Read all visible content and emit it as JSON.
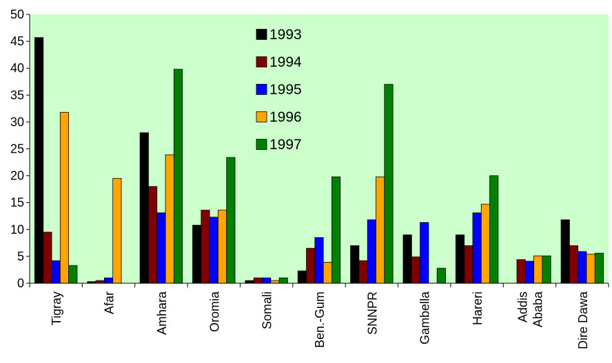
{
  "chart_data": {
    "type": "bar",
    "title": "",
    "xlabel": "",
    "ylabel": "",
    "ylim": [
      0,
      50
    ],
    "yticks": [
      0,
      5,
      10,
      15,
      20,
      25,
      30,
      35,
      40,
      45,
      50
    ],
    "grid": false,
    "plot_background": "#ccffcc",
    "legend_position": "inside-top-center",
    "categories": [
      [
        "Tigray"
      ],
      [
        "Afar"
      ],
      [
        "Amhara"
      ],
      [
        "Oromia"
      ],
      [
        "Somali"
      ],
      [
        "Ben.-Gum"
      ],
      [
        "SNNPR"
      ],
      [
        "Gambella"
      ],
      [
        "Hareri"
      ],
      [
        "Addis",
        "Ababa"
      ],
      [
        "Dire Dawa"
      ]
    ],
    "series": [
      {
        "name": "1993",
        "color": "#000000",
        "values": [
          45.7,
          0.3,
          28.0,
          10.8,
          0.5,
          2.3,
          7.0,
          9.0,
          9.0,
          0,
          11.8
        ]
      },
      {
        "name": "1994",
        "color": "#800000",
        "values": [
          9.5,
          0.5,
          18.0,
          13.6,
          1.0,
          6.5,
          4.2,
          4.9,
          7.0,
          4.4,
          7.0
        ]
      },
      {
        "name": "1995",
        "color": "#0000ff",
        "values": [
          4.2,
          1.0,
          13.1,
          12.3,
          1.0,
          8.5,
          11.8,
          11.3,
          13.1,
          4.1,
          5.9
        ]
      },
      {
        "name": "1996",
        "color": "#ffa500",
        "values": [
          31.8,
          19.5,
          23.9,
          13.6,
          0.5,
          3.9,
          19.8,
          0,
          14.7,
          5.1,
          5.4
        ]
      },
      {
        "name": "1997",
        "color": "#008000",
        "values": [
          3.3,
          0,
          39.8,
          23.4,
          1.0,
          19.8,
          37.0,
          2.8,
          20.0,
          5.1,
          5.6
        ]
      }
    ]
  }
}
